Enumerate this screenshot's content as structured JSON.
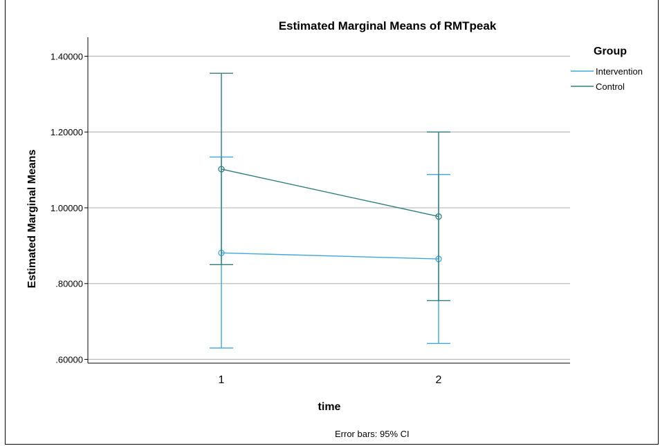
{
  "chart_data": {
    "type": "line",
    "title": "Estimated Marginal Means of RMTpeak",
    "xlabel": "time",
    "ylabel": "Estimated Marginal Means",
    "categories": [
      "1",
      "2"
    ],
    "y_ticks": [
      ".60000",
      ".80000",
      "1.00000",
      "1.20000",
      "1.40000"
    ],
    "ylim": [
      0.59,
      1.45
    ],
    "grid": true,
    "legend": {
      "title": "Group",
      "position": "right"
    },
    "note": "Error bars: 95% CI",
    "series": [
      {
        "name": "Intervention",
        "color": "#3fa5dc",
        "values": [
          0.881,
          0.865
        ],
        "ci_low": [
          0.63,
          0.642
        ],
        "ci_high": [
          1.134,
          1.088
        ]
      },
      {
        "name": "Control",
        "color": "#2e7b7a",
        "values": [
          1.102,
          0.977
        ],
        "ci_low": [
          0.85,
          0.755
        ],
        "ci_high": [
          1.355,
          1.2
        ]
      }
    ]
  }
}
